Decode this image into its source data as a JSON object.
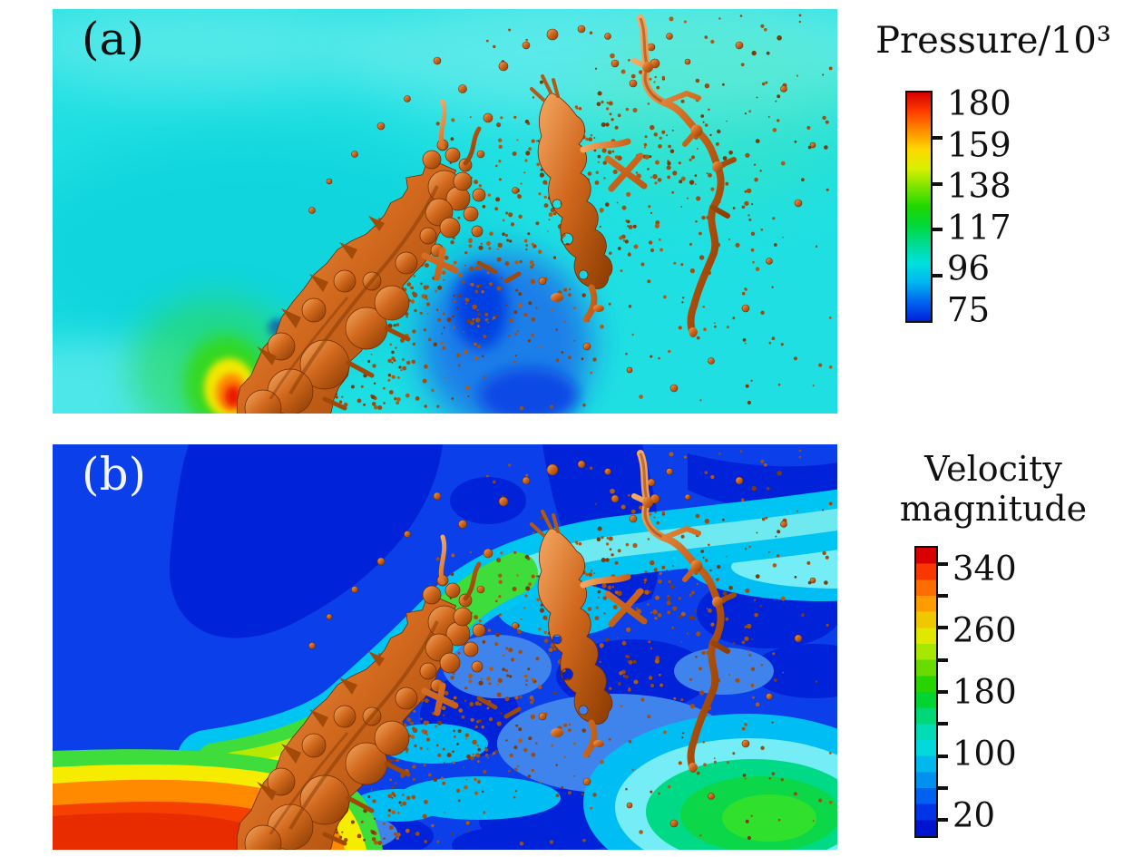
{
  "panels": {
    "a": {
      "label": "(a)",
      "colorbar": {
        "title": "Pressure/10³",
        "tick_labels": [
          "180",
          "159",
          "138",
          "117",
          "96",
          "75"
        ],
        "tick_values": [
          180,
          159,
          138,
          117,
          96,
          75
        ],
        "minor_tick_values": [
          159,
          138,
          117,
          96
        ],
        "min": 75,
        "max": 180,
        "style": "continuous",
        "gradient_colors": [
          "#d80000",
          "#ff3c00",
          "#ff8c00",
          "#ffd800",
          "#d8f000",
          "#78e400",
          "#1ed800",
          "#00d83c",
          "#00dc96",
          "#00e0e0",
          "#00b4f0",
          "#0064f0",
          "#0020dc"
        ]
      }
    },
    "b": {
      "label": "(b)",
      "colorbar": {
        "title_line1": "Velocity",
        "title_line2": "magnitude",
        "tick_labels": [
          "340",
          "260",
          "180",
          "100",
          "20"
        ],
        "tick_values": [
          340,
          260,
          180,
          100,
          20
        ],
        "minor_tick_values": [
          340,
          300,
          260,
          220,
          180,
          140,
          100,
          60,
          20
        ],
        "min": 0,
        "max": 360,
        "style": "banded",
        "band_colors": [
          "#d80000",
          "#f83800",
          "#ff6c00",
          "#ff9c00",
          "#f0c800",
          "#e0e800",
          "#a8e800",
          "#68dc00",
          "#28d400",
          "#00d430",
          "#00d878",
          "#00dcb4",
          "#00d8dc",
          "#00b8ec",
          "#0090f0",
          "#0060f0",
          "#0034e8",
          "#0014d0"
        ]
      }
    }
  },
  "chart_data": [
    {
      "type": "heatmap",
      "panel": "(a)",
      "field": "Pressure/10³",
      "colormap": "jet",
      "colorbar": {
        "title": "Pressure/10³",
        "tick_labels": [
          180,
          159,
          138,
          117,
          96,
          75
        ],
        "min": 75,
        "max": 180,
        "style": "continuous"
      },
      "features": [
        "uniform cyan ambient pressure field, approx 96-105",
        "red/yellow/green high-pressure stagnation spot (peak ~180) at windward base of liquid jet",
        "blue low-pressure wake region (~75-90) immediately right of the liquid column",
        "faint green tint region (~110) in upper right of field",
        "copper-colored liquid jet surface bending from bottom-left to upper-right with ligaments and scattered droplets"
      ]
    },
    {
      "type": "heatmap",
      "panel": "(b)",
      "field": "Velocity magnitude",
      "colormap": "jet",
      "colorbar": {
        "title": "Velocity magnitude",
        "tick_labels": [
          340,
          260,
          180,
          100,
          20
        ],
        "min": 0,
        "max": 360,
        "style": "banded",
        "bands": 18,
        "minor_tick_step": 40
      },
      "features": [
        "red-orange high-speed inflow jet (~300-360) entering from bottom-left corner",
        "green/yellow shear layer (~180-280) wrapping the windward side of the liquid column",
        "cyan/light-cyan high-speed tongue (~100-140) at mid-height near right edge",
        "dark blue low-speed ambient regions (~0-40) in upper left and upper right",
        "green recirculation blob (~180-220) in lower right surrounded by cyan bands",
        "same copper liquid jet surface and droplet spray as panel (a)"
      ]
    }
  ]
}
